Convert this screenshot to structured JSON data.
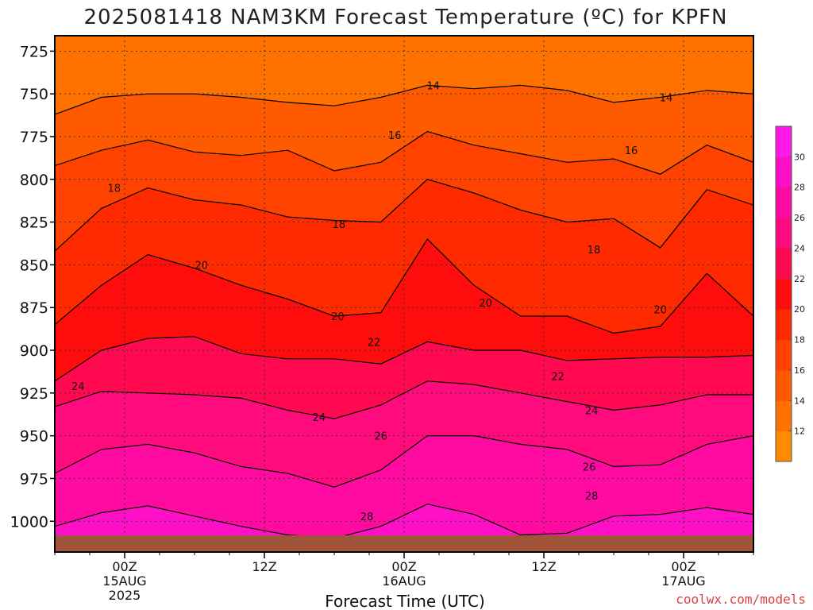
{
  "chart_data": {
    "type": "heatmap",
    "title": "2025081418 NAM3KM Forecast Temperature (ºC) for KPFN",
    "xlabel": "Forecast Time (UTC)",
    "ylabel": "",
    "y_axis": {
      "ticks": [
        725,
        750,
        775,
        800,
        825,
        850,
        875,
        900,
        925,
        950,
        975,
        1000
      ],
      "ylim": [
        1018,
        716
      ],
      "unit": "hPa",
      "inverted": true
    },
    "x_axis": {
      "tick_hours": [
        6,
        18,
        30,
        42,
        54
      ],
      "tick_labels": [
        {
          "time": "00Z",
          "date": "15AUG",
          "year": "2025"
        },
        {
          "time": "12Z",
          "date": "",
          "year": ""
        },
        {
          "time": "00Z",
          "date": "16AUG",
          "year": ""
        },
        {
          "time": "12Z",
          "date": "",
          "year": ""
        },
        {
          "time": "00Z",
          "date": "17AUG",
          "year": ""
        }
      ],
      "xlim_hours": [
        0,
        60
      ]
    },
    "colorbar": {
      "levels": [
        10,
        12,
        14,
        16,
        18,
        20,
        22,
        24,
        26,
        28,
        30,
        32
      ],
      "labels": [
        "12",
        "14",
        "16",
        "18",
        "20",
        "22",
        "24",
        "26",
        "28",
        "30"
      ],
      "colors": [
        "#ff8a00",
        "#ff7200",
        "#ff5a00",
        "#ff4200",
        "#ff2a00",
        "#ff0c0c",
        "#ff0a50",
        "#ff0b7e",
        "#ff0ba2",
        "#ff0fc6",
        "#ff18e6"
      ]
    },
    "contours": [
      {
        "level": 14,
        "hours": [
          0,
          4,
          8,
          12,
          16,
          20,
          24,
          28,
          32,
          36,
          40,
          44,
          48,
          52,
          56,
          60
        ],
        "pressure": [
          762,
          752,
          750,
          750,
          752,
          755,
          757,
          752,
          745,
          747,
          745,
          748,
          755,
          752,
          748,
          750
        ]
      },
      {
        "level": 16,
        "hours": [
          0,
          4,
          8,
          12,
          16,
          20,
          24,
          28,
          32,
          36,
          40,
          44,
          48,
          52,
          56,
          60
        ],
        "pressure": [
          792,
          783,
          777,
          784,
          786,
          783,
          795,
          790,
          772,
          780,
          785,
          790,
          788,
          797,
          780,
          790
        ]
      },
      {
        "level": 18,
        "hours": [
          0,
          4,
          8,
          12,
          16,
          20,
          24,
          28,
          32,
          36,
          40,
          44,
          48,
          52,
          56,
          60
        ],
        "pressure": [
          842,
          817,
          805,
          812,
          815,
          822,
          824,
          825,
          800,
          808,
          818,
          825,
          823,
          840,
          806,
          815
        ]
      },
      {
        "level": 20,
        "hours": [
          0,
          4,
          8,
          12,
          16,
          20,
          24,
          28,
          32,
          36,
          40,
          44,
          48,
          52,
          56,
          60
        ],
        "pressure": [
          885,
          862,
          844,
          852,
          862,
          870,
          880,
          878,
          835,
          862,
          880,
          880,
          890,
          886,
          855,
          880
        ]
      },
      {
        "level": 22,
        "hours": [
          0,
          4,
          8,
          12,
          16,
          20,
          24,
          28,
          32,
          36,
          40,
          44,
          48,
          52,
          56,
          60
        ],
        "pressure": [
          918,
          900,
          893,
          892,
          902,
          905,
          905,
          908,
          895,
          900,
          900,
          906,
          905,
          904,
          904,
          903
        ]
      },
      {
        "level": 24,
        "hours": [
          0,
          4,
          8,
          12,
          16,
          20,
          24,
          28,
          32,
          36,
          40,
          44,
          48,
          52,
          56,
          60
        ],
        "pressure": [
          933,
          924,
          925,
          926,
          928,
          935,
          940,
          932,
          918,
          920,
          925,
          930,
          935,
          932,
          926,
          926
        ]
      },
      {
        "level": 26,
        "hours": [
          0,
          4,
          8,
          12,
          16,
          20,
          24,
          28,
          32,
          36,
          40,
          44,
          48,
          52,
          56,
          60
        ],
        "pressure": [
          972,
          958,
          955,
          960,
          968,
          972,
          980,
          970,
          950,
          950,
          955,
          958,
          968,
          967,
          955,
          950
        ]
      },
      {
        "level": 28,
        "hours": [
          0,
          4,
          8,
          12,
          16,
          20,
          24,
          28,
          32,
          36,
          40,
          44,
          48,
          52,
          56,
          60
        ],
        "pressure": [
          1003,
          995,
          991,
          997,
          1003,
          1008,
          1010,
          1003,
          990,
          996,
          1008,
          1007,
          997,
          996,
          992,
          996
        ]
      }
    ],
    "contour_labels": [
      {
        "text": "14",
        "hour": 32.5,
        "pressure": 745
      },
      {
        "text": "14",
        "hour": 52.5,
        "pressure": 752
      },
      {
        "text": "16",
        "hour": 29.2,
        "pressure": 774
      },
      {
        "text": "16",
        "hour": 49.5,
        "pressure": 783
      },
      {
        "text": "18",
        "hour": 5.1,
        "pressure": 805
      },
      {
        "text": "18",
        "hour": 24.4,
        "pressure": 826
      },
      {
        "text": "18",
        "hour": 46.3,
        "pressure": 841
      },
      {
        "text": "20",
        "hour": 12.6,
        "pressure": 850
      },
      {
        "text": "20",
        "hour": 24.3,
        "pressure": 880
      },
      {
        "text": "20",
        "hour": 37.0,
        "pressure": 872
      },
      {
        "text": "20",
        "hour": 52.0,
        "pressure": 876
      },
      {
        "text": "22",
        "hour": 27.4,
        "pressure": 895
      },
      {
        "text": "22",
        "hour": 43.2,
        "pressure": 915
      },
      {
        "text": "24",
        "hour": 2.0,
        "pressure": 921
      },
      {
        "text": "24",
        "hour": 22.7,
        "pressure": 939
      },
      {
        "text": "24",
        "hour": 46.1,
        "pressure": 935
      },
      {
        "text": "26",
        "hour": 28.0,
        "pressure": 950
      },
      {
        "text": "26",
        "hour": 45.9,
        "pressure": 968
      },
      {
        "text": "28",
        "hour": 26.8,
        "pressure": 997
      },
      {
        "text": "28",
        "hour": 46.1,
        "pressure": 985
      }
    ],
    "terrain_color": "#a0553a"
  },
  "credit": "coolwx.com/models"
}
